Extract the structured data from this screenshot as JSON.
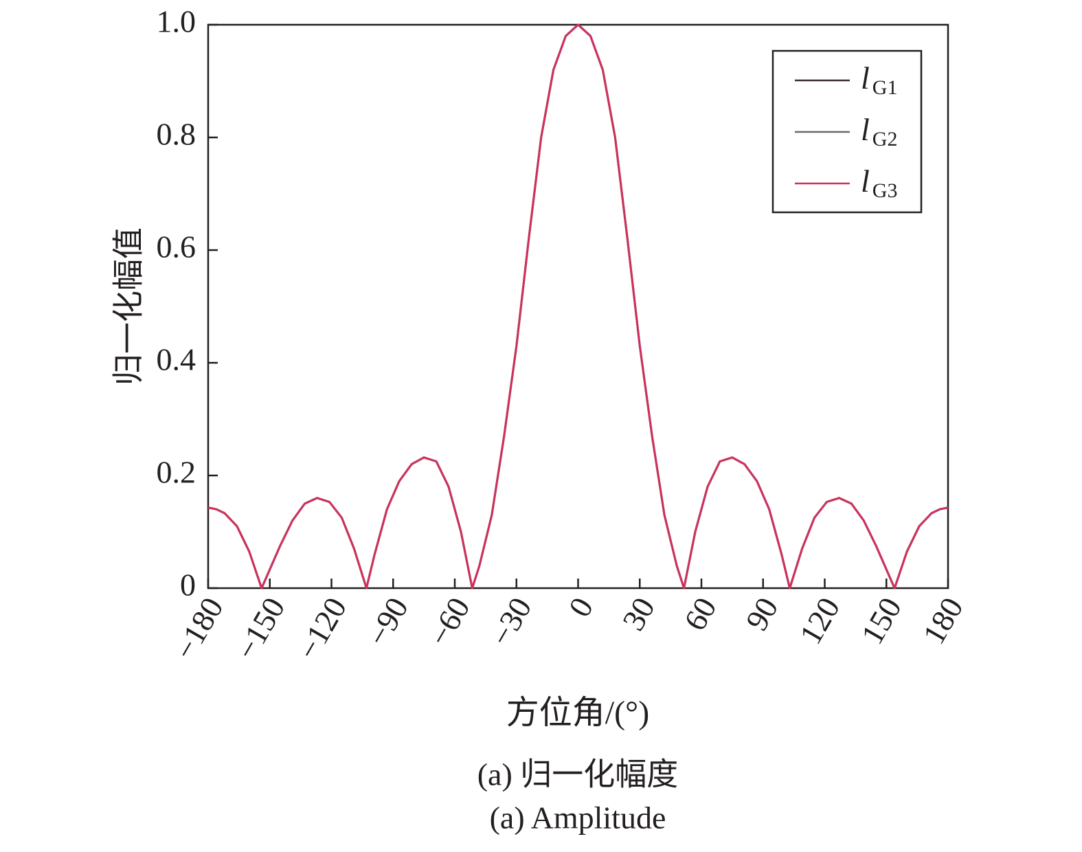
{
  "chart_data": {
    "type": "line",
    "xlabel": "方位角/(°)",
    "ylabel": "归一化幅值",
    "captions": [
      "(a) 归一化幅度",
      "(a) Amplitude"
    ],
    "x": [
      -180,
      -176,
      -172,
      -166,
      -160,
      -154,
      -151,
      -145,
      -139,
      -133,
      -127,
      -121,
      -115,
      -109,
      -103,
      -99,
      -93,
      -87,
      -81,
      -75,
      -69,
      -63,
      -57,
      -51.5,
      -48,
      -42,
      -36,
      -30,
      -24,
      -18,
      -12,
      -6,
      0,
      6,
      12,
      18,
      24,
      30,
      36,
      42,
      48,
      51.5,
      57,
      63,
      69,
      75,
      81,
      87,
      93,
      99,
      103,
      109,
      115,
      121,
      127,
      133,
      139,
      145,
      151,
      154,
      160,
      166,
      172,
      176,
      180
    ],
    "series": [
      {
        "name": "lG1",
        "color": "#3b2a2e",
        "values": [
          0.143,
          0.14,
          0.133,
          0.11,
          0.065,
          0,
          0.025,
          0.075,
          0.12,
          0.15,
          0.16,
          0.153,
          0.125,
          0.07,
          0,
          0.06,
          0.14,
          0.19,
          0.22,
          0.232,
          0.225,
          0.18,
          0.1,
          0,
          0.04,
          0.13,
          0.27,
          0.43,
          0.62,
          0.8,
          0.92,
          0.98,
          1.0,
          0.98,
          0.92,
          0.8,
          0.62,
          0.43,
          0.27,
          0.13,
          0.04,
          0,
          0.1,
          0.18,
          0.225,
          0.232,
          0.22,
          0.19,
          0.14,
          0.06,
          0,
          0.07,
          0.125,
          0.153,
          0.16,
          0.15,
          0.12,
          0.075,
          0.025,
          0,
          0.065,
          0.11,
          0.133,
          0.14,
          0.143
        ]
      },
      {
        "name": "lG2",
        "color": "#6e6668",
        "values": [
          0.143,
          0.14,
          0.133,
          0.11,
          0.065,
          0,
          0.025,
          0.075,
          0.12,
          0.15,
          0.16,
          0.153,
          0.125,
          0.07,
          0,
          0.06,
          0.14,
          0.19,
          0.22,
          0.232,
          0.225,
          0.18,
          0.1,
          0,
          0.04,
          0.13,
          0.27,
          0.43,
          0.62,
          0.8,
          0.92,
          0.98,
          1.0,
          0.98,
          0.92,
          0.8,
          0.62,
          0.43,
          0.27,
          0.13,
          0.04,
          0,
          0.1,
          0.18,
          0.225,
          0.232,
          0.22,
          0.19,
          0.14,
          0.06,
          0,
          0.07,
          0.125,
          0.153,
          0.16,
          0.15,
          0.12,
          0.075,
          0.025,
          0,
          0.065,
          0.11,
          0.133,
          0.14,
          0.143
        ]
      },
      {
        "name": "lG3",
        "color": "#d0305c",
        "values": [
          0.143,
          0.14,
          0.133,
          0.11,
          0.065,
          0,
          0.025,
          0.075,
          0.12,
          0.15,
          0.16,
          0.153,
          0.125,
          0.07,
          0,
          0.06,
          0.14,
          0.19,
          0.22,
          0.232,
          0.225,
          0.18,
          0.1,
          0,
          0.04,
          0.13,
          0.27,
          0.43,
          0.62,
          0.8,
          0.92,
          0.98,
          1.0,
          0.98,
          0.92,
          0.8,
          0.62,
          0.43,
          0.27,
          0.13,
          0.04,
          0,
          0.1,
          0.18,
          0.225,
          0.232,
          0.22,
          0.19,
          0.14,
          0.06,
          0,
          0.07,
          0.125,
          0.153,
          0.16,
          0.15,
          0.12,
          0.075,
          0.025,
          0,
          0.065,
          0.11,
          0.133,
          0.14,
          0.143
        ]
      }
    ],
    "xlim": [
      -180,
      180
    ],
    "xticks": [
      {
        "value": -180,
        "label": "−180"
      },
      {
        "value": -150,
        "label": "−150"
      },
      {
        "value": -120,
        "label": "−120"
      },
      {
        "value": -90,
        "label": "−90"
      },
      {
        "value": -60,
        "label": "−60"
      },
      {
        "value": -30,
        "label": "−30"
      },
      0,
      30,
      60,
      90,
      120,
      150,
      180
    ],
    "ylim": [
      0,
      1
    ],
    "yticks": [
      0,
      0.2,
      0.4,
      0.6,
      0.8,
      {
        "value": 1,
        "label": "1.0"
      }
    ],
    "legend": "upper right",
    "grid": false
  }
}
